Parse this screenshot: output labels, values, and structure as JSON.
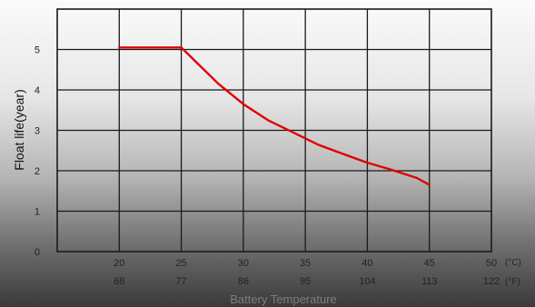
{
  "chart_data": {
    "type": "line",
    "ylabel": "Float life(year)",
    "xlabel": "Battery Temperature",
    "x_unit_c": "(°C)",
    "x_unit_f": "(°F)",
    "x_ticks_c": [
      "20",
      "25",
      "30",
      "35",
      "40",
      "45",
      "50"
    ],
    "x_ticks_f": [
      "68",
      "77",
      "86",
      "95",
      "104",
      "113",
      "122"
    ],
    "y_ticks": [
      "0",
      "1",
      "2",
      "3",
      "4",
      "5"
    ],
    "xlim": [
      15,
      50
    ],
    "ylim": [
      0,
      6
    ],
    "grid": true,
    "line_color": "#e00000",
    "series": [
      {
        "x": [
          20,
          25,
          26,
          28,
          30,
          32,
          34,
          36,
          38,
          40,
          42,
          44,
          45
        ],
        "y": [
          5.05,
          5.05,
          4.75,
          4.15,
          3.65,
          3.25,
          2.95,
          2.65,
          2.42,
          2.2,
          2.02,
          1.82,
          1.65
        ]
      }
    ]
  }
}
